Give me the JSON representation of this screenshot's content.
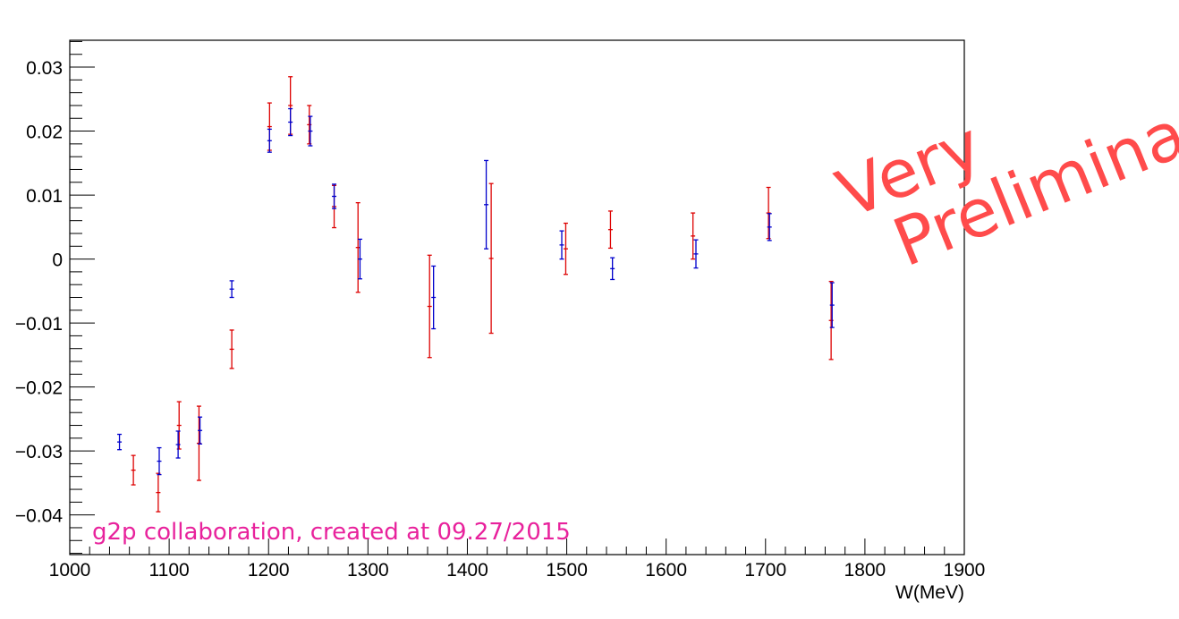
{
  "chart_data": {
    "type": "scatter",
    "title": "",
    "xlabel": "W(MeV)",
    "ylabel": "",
    "xlim": [
      1000,
      1900
    ],
    "ylim": [
      -0.0462,
      0.0342
    ],
    "x_ticks": [
      1000,
      1100,
      1200,
      1300,
      1400,
      1500,
      1600,
      1700,
      1800,
      1900
    ],
    "x_tick_labels": [
      "1000",
      "1100",
      "1200",
      "1300",
      "1400",
      "1500",
      "1600",
      "1700",
      "1800",
      "1900"
    ],
    "y_ticks": [
      -0.04,
      -0.03,
      -0.02,
      -0.01,
      0,
      0.01,
      0.02,
      0.03
    ],
    "y_tick_labels": [
      "−0.04",
      "−0.03",
      "−0.02",
      "−0.01",
      "0",
      "0.01",
      "0.02",
      "0.03"
    ],
    "grid": false,
    "series": [
      {
        "color": "#dd0000",
        "points": [
          {
            "x": 1064,
            "y": -0.033,
            "err": 0.0023
          },
          {
            "x": 1089,
            "y": -0.0365,
            "err": 0.003
          },
          {
            "x": 1110,
            "y": -0.026,
            "err": 0.0037
          },
          {
            "x": 1130,
            "y": -0.0288,
            "err": 0.0058
          },
          {
            "x": 1163,
            "y": -0.0141,
            "err": 0.003
          },
          {
            "x": 1201,
            "y": 0.0207,
            "err": 0.0037
          },
          {
            "x": 1222,
            "y": 0.024,
            "err": 0.0045
          },
          {
            "x": 1241,
            "y": 0.021,
            "err": 0.003
          },
          {
            "x": 1266,
            "y": 0.0082,
            "err": 0.0033
          },
          {
            "x": 1290,
            "y": 0.0018,
            "err": 0.007
          },
          {
            "x": 1362,
            "y": -0.0074,
            "err": 0.008
          },
          {
            "x": 1424,
            "y": 0.0001,
            "err": 0.0117
          },
          {
            "x": 1499,
            "y": 0.0016,
            "err": 0.004
          },
          {
            "x": 1544,
            "y": 0.0046,
            "err": 0.0029
          },
          {
            "x": 1627,
            "y": 0.0036,
            "err": 0.0036
          },
          {
            "x": 1703,
            "y": 0.0072,
            "err": 0.004
          },
          {
            "x": 1766,
            "y": -0.0096,
            "err": 0.0061
          }
        ]
      },
      {
        "color": "#0000cc",
        "points": [
          {
            "x": 1050,
            "y": -0.0286,
            "err": 0.0012
          },
          {
            "x": 1090,
            "y": -0.0316,
            "err": 0.0021
          },
          {
            "x": 1109,
            "y": -0.029,
            "err": 0.0021
          },
          {
            "x": 1131,
            "y": -0.0268,
            "err": 0.0021
          },
          {
            "x": 1163,
            "y": -0.0047,
            "err": 0.0013
          },
          {
            "x": 1201,
            "y": 0.0185,
            "err": 0.0018
          },
          {
            "x": 1222,
            "y": 0.0214,
            "err": 0.0021
          },
          {
            "x": 1242,
            "y": 0.02,
            "err": 0.0023
          },
          {
            "x": 1266,
            "y": 0.0098,
            "err": 0.0019
          },
          {
            "x": 1292,
            "y": 0.0,
            "err": 0.0031
          },
          {
            "x": 1366,
            "y": -0.006,
            "err": 0.0049
          },
          {
            "x": 1419,
            "y": 0.0085,
            "err": 0.0069
          },
          {
            "x": 1495,
            "y": 0.0022,
            "err": 0.0022
          },
          {
            "x": 1546,
            "y": -0.0015,
            "err": 0.0017
          },
          {
            "x": 1630,
            "y": 0.0008,
            "err": 0.0022
          },
          {
            "x": 1704,
            "y": 0.005,
            "err": 0.0021
          },
          {
            "x": 1767,
            "y": -0.0072,
            "err": 0.0035
          }
        ]
      }
    ]
  },
  "annotations": {
    "credit": "g2p collaboration, created at 09.27/2015",
    "credit_color": "#e8229c",
    "watermark_line1": "Very",
    "watermark_line2": "Preliminary",
    "watermark_color": "#ff4b4b"
  }
}
